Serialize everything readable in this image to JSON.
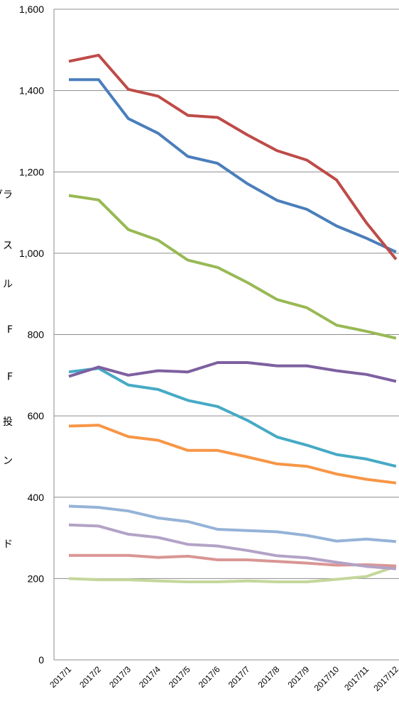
{
  "chart_data": {
    "type": "line",
    "title": "",
    "xlabel": "",
    "ylabel": "",
    "ylim": [
      0,
      1600
    ],
    "yticks": [
      0,
      200,
      400,
      600,
      800,
      1000,
      1200,
      1400,
      1600
    ],
    "ytick_labels": [
      "0",
      "200",
      "400",
      "600",
      "800",
      "1,000",
      "1,200",
      "1,400",
      "1,600"
    ],
    "grid": true,
    "categories": [
      "2017/1",
      "2017/2",
      "2017/3",
      "2017/4",
      "2017/5",
      "2017/6",
      "2017/7",
      "2017/8",
      "2017/9",
      "2017/10",
      "2017/11",
      "2017/12"
    ],
    "series": [
      {
        "color": "#be4b48",
        "values": [
          1472,
          1487,
          1403,
          1386,
          1339,
          1334,
          1291,
          1252,
          1229,
          1180,
          1075,
          985
        ]
      },
      {
        "color": "#4a7ebb",
        "values": [
          1427,
          1427,
          1331,
          1295,
          1238,
          1221,
          1171,
          1130,
          1108,
          1067,
          1037,
          1003
        ]
      },
      {
        "color": "#98b954",
        "values": [
          1142,
          1131,
          1058,
          1032,
          983,
          965,
          928,
          886,
          866,
          823,
          808,
          791
        ]
      },
      {
        "color": "#7d60a0",
        "values": [
          697,
          720,
          700,
          711,
          708,
          731,
          731,
          723,
          723,
          711,
          702,
          685
        ]
      },
      {
        "color": "#46aac5",
        "values": [
          708,
          717,
          676,
          665,
          638,
          623,
          589,
          548,
          528,
          505,
          494,
          476
        ]
      },
      {
        "color": "#f79646",
        "values": [
          575,
          577,
          549,
          540,
          515,
          515,
          499,
          482,
          476,
          457,
          444,
          435
        ]
      },
      {
        "color": "#95b3d7",
        "values": [
          378,
          375,
          366,
          349,
          340,
          321,
          318,
          315,
          306,
          292,
          297,
          291
        ]
      },
      {
        "color": "#b3a2c7",
        "values": [
          332,
          329,
          309,
          301,
          284,
          280,
          269,
          256,
          251,
          240,
          230,
          224
        ]
      },
      {
        "color": "#d99694",
        "values": [
          257,
          257,
          257,
          252,
          255,
          246,
          246,
          242,
          238,
          233,
          234,
          231
        ]
      },
      {
        "color": "#c4d79b",
        "values": [
          200,
          197,
          197,
          194,
          192,
          192,
          194,
          192,
          192,
          198,
          205,
          230
        ]
      }
    ]
  },
  "legend_fragments": [
    {
      "text": "グラ",
      "y": 1145
    },
    {
      "text": "ス",
      "y": 1020
    },
    {
      "text": "ル",
      "y": 925
    },
    {
      "text": "F",
      "y": 813
    },
    {
      "text": "F",
      "y": 697
    },
    {
      "text": "投",
      "y": 586
    },
    {
      "text": "ン",
      "y": 490
    },
    {
      "text": "ド",
      "y": 285
    }
  ]
}
